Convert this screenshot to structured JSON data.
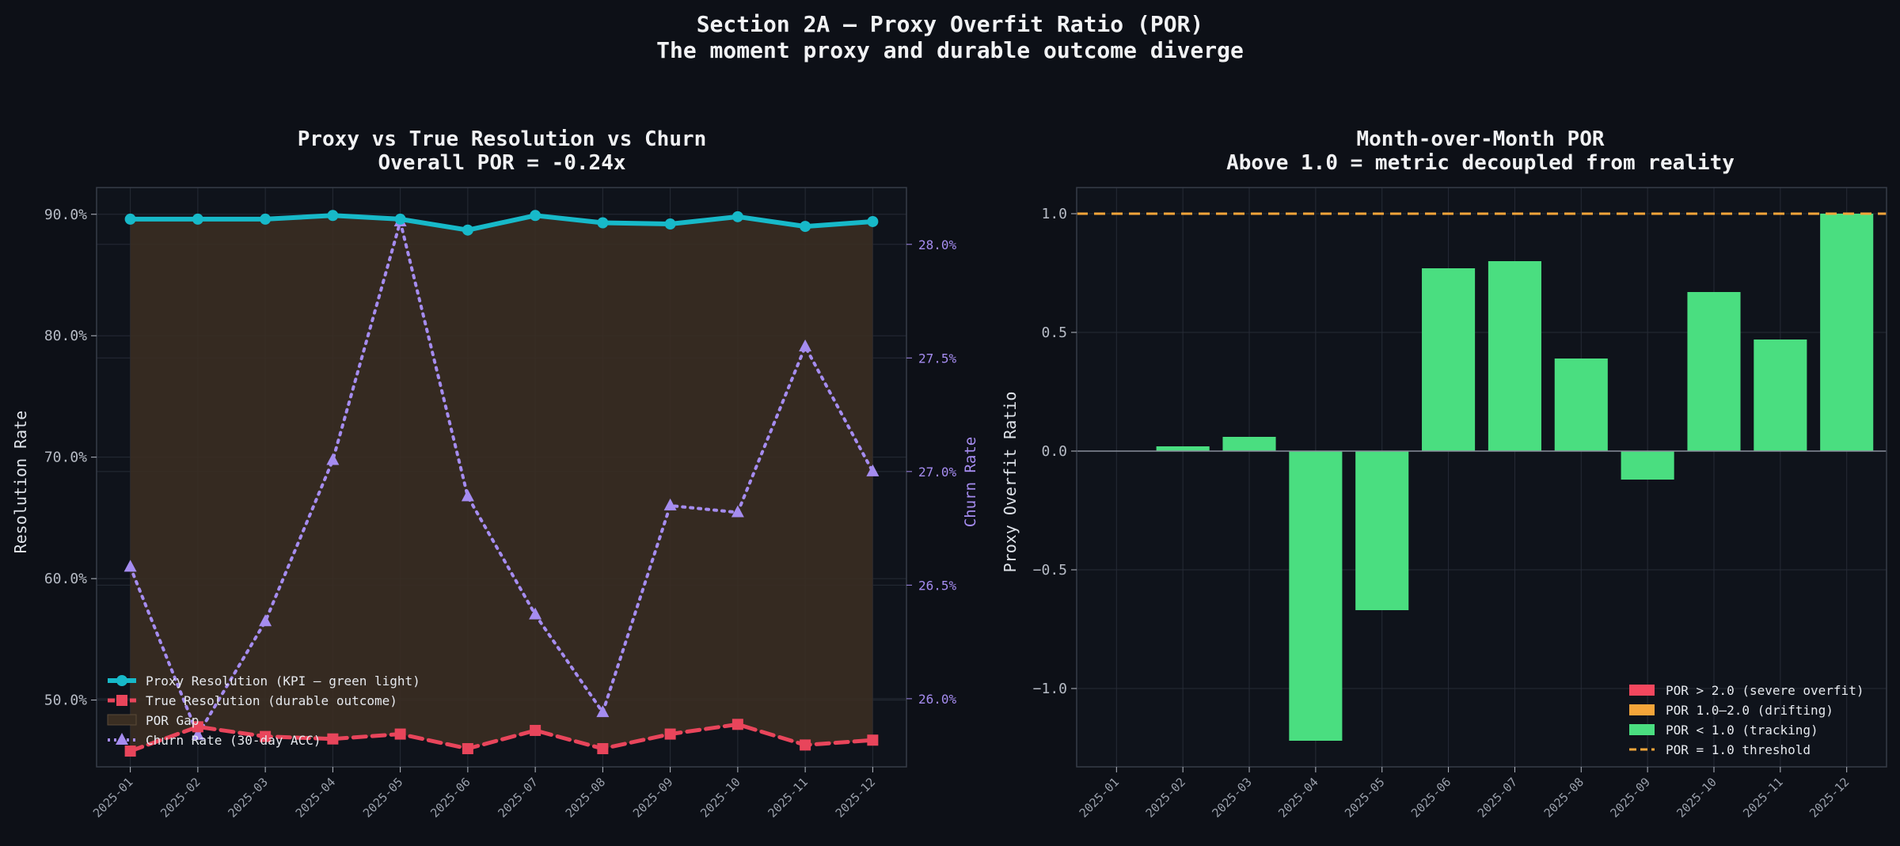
{
  "page": {
    "title": "Section 2A — Proxy Overfit Ratio (POR)",
    "subtitle": "The moment proxy and durable outcome diverge"
  },
  "chart_data": [
    {
      "type": "line",
      "title": "Proxy vs True Resolution vs Churn",
      "subtitle": "Overall POR = -0.24x",
      "ylabel": "Resolution Rate",
      "y2label": "Churn Rate",
      "categories": [
        "2025-01",
        "2025-02",
        "2025-03",
        "2025-04",
        "2025-05",
        "2025-06",
        "2025-07",
        "2025-08",
        "2025-09",
        "2025-10",
        "2025-11",
        "2025-12"
      ],
      "ylim": [
        44.5,
        92.2
      ],
      "yticks": [
        50,
        60,
        70,
        80,
        90
      ],
      "ytick_labels": [
        "50.0%",
        "60.0%",
        "70.0%",
        "80.0%",
        "90.0%"
      ],
      "y2lim": [
        25.7,
        28.25
      ],
      "y2ticks": [
        26.0,
        26.5,
        27.0,
        27.5,
        28.0
      ],
      "y2tick_labels": [
        "26.0%",
        "26.5%",
        "27.0%",
        "27.5%",
        "28.0%"
      ],
      "grid": true,
      "legend_position": "lower-left",
      "series": [
        {
          "name": "Proxy Resolution (KPI — green light)",
          "axis": "left",
          "color": "#17b9c9",
          "style": "solid",
          "marker": "circle",
          "values": [
            89.6,
            89.6,
            89.6,
            89.9,
            89.6,
            88.7,
            89.9,
            89.3,
            89.2,
            89.8,
            89.0,
            89.4
          ]
        },
        {
          "name": "True Resolution (durable outcome)",
          "axis": "left",
          "color": "#e8455b",
          "style": "dashed",
          "marker": "square",
          "values": [
            45.8,
            47.8,
            47.0,
            46.8,
            47.2,
            46.0,
            47.5,
            46.0,
            47.2,
            48.0,
            46.3,
            46.7
          ]
        },
        {
          "name": "Churn Rate (30-day ACC)",
          "axis": "right",
          "color": "#a58cf0",
          "style": "dotted",
          "marker": "triangle",
          "values": [
            26.58,
            25.84,
            26.34,
            27.05,
            28.1,
            26.89,
            26.37,
            25.94,
            26.85,
            26.82,
            27.55,
            27.0
          ]
        }
      ],
      "fill": {
        "name": "POR Gap",
        "color": "#3a2e22"
      }
    },
    {
      "type": "bar",
      "title": "Month-over-Month POR",
      "subtitle": "Above 1.0 = metric decoupled from reality",
      "ylabel": "Proxy Overfit Ratio",
      "categories": [
        "2025-01",
        "2025-02",
        "2025-03",
        "2025-04",
        "2025-05",
        "2025-06",
        "2025-07",
        "2025-08",
        "2025-09",
        "2025-10",
        "2025-11",
        "2025-12"
      ],
      "values": [
        0.0,
        0.02,
        0.06,
        -1.22,
        -0.67,
        0.77,
        0.8,
        0.39,
        -0.12,
        0.67,
        0.47,
        1.0
      ],
      "ylim": [
        -1.33,
        1.11
      ],
      "yticks": [
        -1.0,
        -0.5,
        0.0,
        0.5,
        1.0
      ],
      "ytick_labels": [
        "−1.0",
        "−0.5",
        "0.0",
        "0.5",
        "1.0"
      ],
      "threshold": 1.0,
      "grid": true,
      "legend_position": "lower-right",
      "legend": [
        {
          "label": "POR > 2.0 (severe overfit)",
          "color": "#f4475e",
          "kind": "patch"
        },
        {
          "label": "POR 1.0–2.0 (drifting)",
          "color": "#f5a53a",
          "kind": "patch"
        },
        {
          "label": "POR < 1.0 (tracking)",
          "color": "#4ade80",
          "kind": "patch"
        },
        {
          "label": "POR = 1.0 threshold",
          "color": "#f5a53a",
          "kind": "dash"
        }
      ]
    }
  ]
}
